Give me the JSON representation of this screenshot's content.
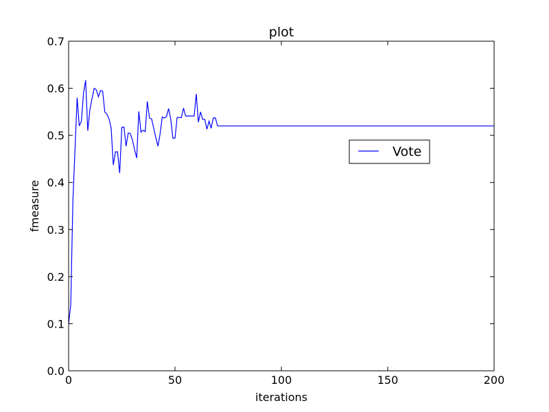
{
  "chart_data": {
    "type": "line",
    "title": "plot",
    "xlabel": "iterations",
    "ylabel": "fmeasure",
    "xlim": [
      0,
      200
    ],
    "ylim": [
      0.0,
      0.7
    ],
    "x_ticks": [
      0,
      50,
      100,
      150,
      200
    ],
    "y_ticks": [
      0.0,
      0.1,
      0.2,
      0.3,
      0.4,
      0.5,
      0.6,
      0.7
    ],
    "x_tick_labels": [
      "0",
      "50",
      "100",
      "150",
      "200"
    ],
    "y_tick_labels": [
      "0.0",
      "0.1",
      "0.2",
      "0.3",
      "0.4",
      "0.5",
      "0.6",
      "0.7"
    ],
    "grid": false,
    "legend_position": "center-right",
    "series": [
      {
        "name": "Vote",
        "color": "#0000ff",
        "points": [
          [
            0,
            0.1
          ],
          [
            1,
            0.14
          ],
          [
            2,
            0.36
          ],
          [
            3,
            0.47
          ],
          [
            4,
            0.58
          ],
          [
            5,
            0.52
          ],
          [
            6,
            0.53
          ],
          [
            7,
            0.59
          ],
          [
            8,
            0.617
          ],
          [
            9,
            0.51
          ],
          [
            10,
            0.555
          ],
          [
            11,
            0.578
          ],
          [
            12,
            0.6
          ],
          [
            13,
            0.597
          ],
          [
            14,
            0.582
          ],
          [
            15,
            0.595
          ],
          [
            16,
            0.594
          ],
          [
            17,
            0.55
          ],
          [
            18,
            0.545
          ],
          [
            19,
            0.535
          ],
          [
            20,
            0.515
          ],
          [
            21,
            0.437
          ],
          [
            22,
            0.465
          ],
          [
            23,
            0.465
          ],
          [
            24,
            0.42
          ],
          [
            25,
            0.517
          ],
          [
            26,
            0.518
          ],
          [
            27,
            0.477
          ],
          [
            28,
            0.505
          ],
          [
            29,
            0.504
          ],
          [
            30,
            0.49
          ],
          [
            31,
            0.47
          ],
          [
            32,
            0.452
          ],
          [
            33,
            0.551
          ],
          [
            34,
            0.507
          ],
          [
            35,
            0.511
          ],
          [
            36,
            0.508
          ],
          [
            37,
            0.572
          ],
          [
            38,
            0.537
          ],
          [
            39,
            0.535
          ],
          [
            40,
            0.515
          ],
          [
            41,
            0.495
          ],
          [
            42,
            0.477
          ],
          [
            43,
            0.503
          ],
          [
            44,
            0.539
          ],
          [
            45,
            0.537
          ],
          [
            46,
            0.54
          ],
          [
            47,
            0.557
          ],
          [
            48,
            0.535
          ],
          [
            49,
            0.494
          ],
          [
            50,
            0.494
          ],
          [
            51,
            0.538
          ],
          [
            52,
            0.538
          ],
          [
            53,
            0.538
          ],
          [
            54,
            0.558
          ],
          [
            55,
            0.541
          ],
          [
            56,
            0.541
          ],
          [
            57,
            0.541
          ],
          [
            58,
            0.541
          ],
          [
            59,
            0.541
          ],
          [
            60,
            0.588
          ],
          [
            61,
            0.528
          ],
          [
            62,
            0.55
          ],
          [
            63,
            0.534
          ],
          [
            64,
            0.534
          ],
          [
            65,
            0.513
          ],
          [
            66,
            0.53
          ],
          [
            67,
            0.515
          ],
          [
            68,
            0.537
          ],
          [
            69,
            0.537
          ],
          [
            70,
            0.52
          ],
          [
            80,
            0.52
          ],
          [
            100,
            0.52
          ],
          [
            150,
            0.52
          ],
          [
            200,
            0.52
          ]
        ]
      }
    ]
  }
}
